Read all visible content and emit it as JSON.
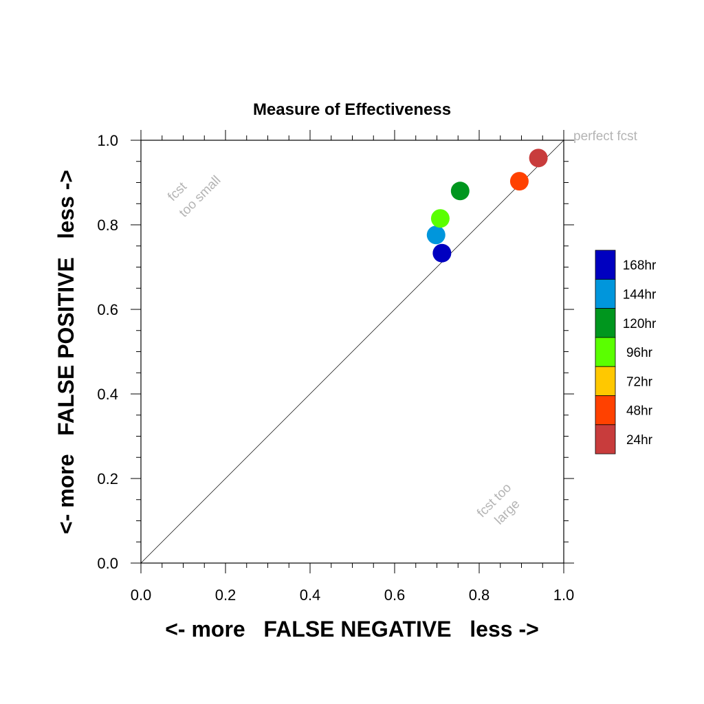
{
  "chart_data": {
    "type": "scatter",
    "title": "Measure of Effectiveness",
    "xlabel": "<- more   FALSE NEGATIVE   less ->",
    "ylabel": "<- more   FALSE POSITIVE   less ->",
    "xlim": [
      0.0,
      1.0
    ],
    "ylim": [
      0.0,
      1.0
    ],
    "xticks": [
      "0.0",
      "0.2",
      "0.4",
      "0.6",
      "0.8",
      "1.0"
    ],
    "yticks": [
      "0.0",
      "0.2",
      "0.4",
      "0.6",
      "0.8",
      "1.0"
    ],
    "grid": false,
    "legend_position": "right",
    "annotations": {
      "perfect": "perfect fcst",
      "too_small_line1": "fcst",
      "too_small_line2": "too small",
      "too_large_line1": "fcst too",
      "too_large_line2": "large"
    },
    "reference_line": "diagonal",
    "series": [
      {
        "name": "168hr",
        "color": "#0000c0",
        "x": 0.712,
        "y": 0.733
      },
      {
        "name": "144hr",
        "color": "#0096dc",
        "x": 0.698,
        "y": 0.776
      },
      {
        "name": "120hr",
        "color": "#00961e",
        "x": 0.755,
        "y": 0.88
      },
      {
        "name": "96hr",
        "color": "#5aff00",
        "x": 0.708,
        "y": 0.815
      },
      {
        "name": "72hr",
        "color": "#ffc800",
        "x": null,
        "y": null
      },
      {
        "name": "48hr",
        "color": "#ff4100",
        "x": 0.895,
        "y": 0.903
      },
      {
        "name": "24hr",
        "color": "#c83c3c",
        "x": 0.94,
        "y": 0.958
      }
    ]
  }
}
